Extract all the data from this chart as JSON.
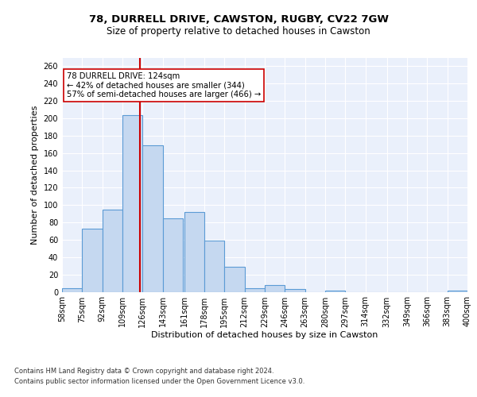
{
  "title1": "78, DURRELL DRIVE, CAWSTON, RUGBY, CV22 7GW",
  "title2": "Size of property relative to detached houses in Cawston",
  "xlabel": "Distribution of detached houses by size in Cawston",
  "ylabel": "Number of detached properties",
  "bar_left_edges": [
    58,
    75,
    92,
    109,
    126,
    143,
    161,
    178,
    195,
    212,
    229,
    246,
    263,
    280,
    297,
    314,
    332,
    349,
    366,
    383
  ],
  "bar_heights": [
    4,
    73,
    95,
    204,
    169,
    85,
    92,
    59,
    29,
    4,
    8,
    3,
    0,
    1,
    0,
    0,
    0,
    0,
    0,
    1
  ],
  "bin_width": 17,
  "bar_color": "#c5d8f0",
  "bar_edge_color": "#5b9bd5",
  "vline_x": 124,
  "vline_color": "#cc0000",
  "annotation_text": "78 DURRELL DRIVE: 124sqm\n← 42% of detached houses are smaller (344)\n57% of semi-detached houses are larger (466) →",
  "annotation_box_color": "#ffffff",
  "annotation_box_edge": "#cc0000",
  "ylim": [
    0,
    270
  ],
  "yticks": [
    0,
    20,
    40,
    60,
    80,
    100,
    120,
    140,
    160,
    180,
    200,
    220,
    240,
    260
  ],
  "x_tick_labels": [
    "58sqm",
    "75sqm",
    "92sqm",
    "109sqm",
    "126sqm",
    "143sqm",
    "161sqm",
    "178sqm",
    "195sqm",
    "212sqm",
    "229sqm",
    "246sqm",
    "263sqm",
    "280sqm",
    "297sqm",
    "314sqm",
    "332sqm",
    "349sqm",
    "366sqm",
    "383sqm",
    "400sqm"
  ],
  "footnote1": "Contains HM Land Registry data © Crown copyright and database right 2024.",
  "footnote2": "Contains public sector information licensed under the Open Government Licence v3.0.",
  "bg_color": "#eaf0fb",
  "fig_bg_color": "#ffffff",
  "grid_color": "#ffffff"
}
